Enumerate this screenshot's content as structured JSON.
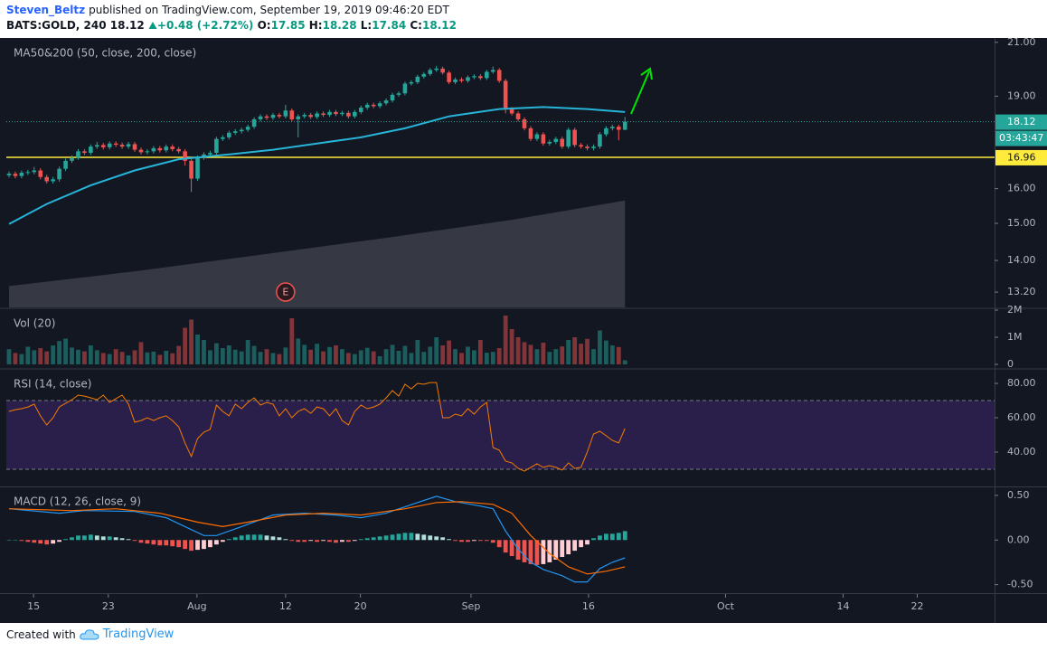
{
  "header": {
    "author": "Steven_Beltz",
    "published": "published on TradingView.com, September 19, 2019 09:46:20 EDT",
    "symbol": "BATS:GOLD, 240",
    "change": "+0.48 (+2.72%)",
    "ohlc_labels": [
      "O:",
      "H:",
      "L:",
      "C:"
    ]
  },
  "footer": {
    "created": "Created with",
    "brand": "TradingView"
  },
  "chart_data": [
    {
      "type": "candlestick",
      "title": "MA50&200 (50, close, 200, close)",
      "log_scale": true,
      "up_color": "#26a69a",
      "down_color": "#ef5350",
      "xlim": [
        -0.43,
        156.8
      ],
      "ylim": [
        12.83,
        21.1
      ],
      "xticks": [
        {
          "value": 3.9,
          "label": "15"
        },
        {
          "value": 15.8,
          "label": "23"
        },
        {
          "value": 29.9,
          "label": "Aug"
        },
        {
          "value": 44.0,
          "label": "12"
        },
        {
          "value": 55.9,
          "label": "20"
        },
        {
          "value": 73.5,
          "label": "Sep"
        },
        {
          "value": 92.2,
          "label": "16"
        },
        {
          "value": 114,
          "label": "Oct"
        },
        {
          "value": 132.7,
          "label": "14"
        },
        {
          "value": 144.5,
          "label": "22"
        }
      ],
      "yticks": [
        {
          "value": 21,
          "label": "21.00"
        },
        {
          "value": 19,
          "label": "19.00"
        },
        {
          "value": 16,
          "label": "16.00"
        },
        {
          "value": 15,
          "label": "15.00"
        },
        {
          "value": 14,
          "label": "14.00"
        },
        {
          "value": 13.2,
          "label": "13.20"
        }
      ],
      "ohlc": [
        [
          16.4,
          16.52,
          16.33,
          16.45
        ],
        [
          16.45,
          16.52,
          16.31,
          16.38
        ],
        [
          16.38,
          16.55,
          16.31,
          16.48
        ],
        [
          16.48,
          16.57,
          16.41,
          16.5
        ],
        [
          16.5,
          16.66,
          16.43,
          16.55
        ],
        [
          16.55,
          16.62,
          16.28,
          16.35
        ],
        [
          16.35,
          16.42,
          16.15,
          16.22
        ],
        [
          16.22,
          16.35,
          16.15,
          16.28
        ],
        [
          16.28,
          16.67,
          16.21,
          16.6
        ],
        [
          16.6,
          16.92,
          16.53,
          16.85
        ],
        [
          16.85,
          17.02,
          16.78,
          16.95
        ],
        [
          16.95,
          17.22,
          16.88,
          17.15
        ],
        [
          17.15,
          17.22,
          17.03,
          17.1
        ],
        [
          17.1,
          17.37,
          17.03,
          17.3
        ],
        [
          17.3,
          17.45,
          17.23,
          17.35
        ],
        [
          17.35,
          17.42,
          17.21,
          17.28
        ],
        [
          17.28,
          17.47,
          17.21,
          17.4
        ],
        [
          17.4,
          17.47,
          17.29,
          17.36
        ],
        [
          17.36,
          17.43,
          17.23,
          17.3
        ],
        [
          17.3,
          17.45,
          17.23,
          17.38
        ],
        [
          17.38,
          17.45,
          17.13,
          17.2
        ],
        [
          17.2,
          17.27,
          17.05,
          17.12
        ],
        [
          17.12,
          17.22,
          17.05,
          17.15
        ],
        [
          17.15,
          17.32,
          17.08,
          17.25
        ],
        [
          17.25,
          17.32,
          17.11,
          17.18
        ],
        [
          17.18,
          17.37,
          17.11,
          17.3
        ],
        [
          17.3,
          17.37,
          17.15,
          17.22
        ],
        [
          17.22,
          17.29,
          17.08,
          17.15
        ],
        [
          17.15,
          17.22,
          16.7,
          16.85
        ],
        [
          16.85,
          16.92,
          15.9,
          16.3
        ],
        [
          16.3,
          17.02,
          16.23,
          16.95
        ],
        [
          16.95,
          17.12,
          16.88,
          17.05
        ],
        [
          17.05,
          17.17,
          16.98,
          17.1
        ],
        [
          17.1,
          17.62,
          17.03,
          17.55
        ],
        [
          17.55,
          17.67,
          17.48,
          17.6
        ],
        [
          17.6,
          17.82,
          17.53,
          17.75
        ],
        [
          17.75,
          17.87,
          17.68,
          17.8
        ],
        [
          17.8,
          17.92,
          17.73,
          17.85
        ],
        [
          17.85,
          18.02,
          17.78,
          17.95
        ],
        [
          17.95,
          18.27,
          17.88,
          18.2
        ],
        [
          18.2,
          18.37,
          18.13,
          18.3
        ],
        [
          18.3,
          18.37,
          18.18,
          18.25
        ],
        [
          18.25,
          18.42,
          18.18,
          18.35
        ],
        [
          18.35,
          18.42,
          18.23,
          18.3
        ],
        [
          18.3,
          18.7,
          18.23,
          18.5
        ],
        [
          18.5,
          18.57,
          18.13,
          18.2
        ],
        [
          18.2,
          18.37,
          17.6,
          18.3
        ],
        [
          18.3,
          18.42,
          18.23,
          18.35
        ],
        [
          18.35,
          18.42,
          18.21,
          18.28
        ],
        [
          18.28,
          18.47,
          18.21,
          18.4
        ],
        [
          18.4,
          18.47,
          18.28,
          18.35
        ],
        [
          18.35,
          18.52,
          18.28,
          18.45
        ],
        [
          18.45,
          18.52,
          18.31,
          18.38
        ],
        [
          18.38,
          18.49,
          18.31,
          18.42
        ],
        [
          18.42,
          18.49,
          18.23,
          18.3
        ],
        [
          18.3,
          18.52,
          18.23,
          18.45
        ],
        [
          18.45,
          18.67,
          18.38,
          18.6
        ],
        [
          18.6,
          18.77,
          18.53,
          18.7
        ],
        [
          18.7,
          18.77,
          18.58,
          18.65
        ],
        [
          18.65,
          18.82,
          18.58,
          18.75
        ],
        [
          18.75,
          18.92,
          18.68,
          18.85
        ],
        [
          18.85,
          19.12,
          18.78,
          19.05
        ],
        [
          19.05,
          19.17,
          18.98,
          19.1
        ],
        [
          19.1,
          19.52,
          19.03,
          19.45
        ],
        [
          19.45,
          19.57,
          19.38,
          19.5
        ],
        [
          19.5,
          19.77,
          19.43,
          19.7
        ],
        [
          19.7,
          19.87,
          19.63,
          19.8
        ],
        [
          19.8,
          20.02,
          19.73,
          19.95
        ],
        [
          19.95,
          20.1,
          19.88,
          20.0
        ],
        [
          20.0,
          20.07,
          19.78,
          19.85
        ],
        [
          19.85,
          19.92,
          19.43,
          19.5
        ],
        [
          19.5,
          19.67,
          19.43,
          19.6
        ],
        [
          19.6,
          19.67,
          19.48,
          19.55
        ],
        [
          19.55,
          19.75,
          19.48,
          19.68
        ],
        [
          19.68,
          19.79,
          19.61,
          19.72
        ],
        [
          19.72,
          19.79,
          19.58,
          19.65
        ],
        [
          19.65,
          19.95,
          19.58,
          19.88
        ],
        [
          19.88,
          20.08,
          19.81,
          19.95
        ],
        [
          19.95,
          20.02,
          19.48,
          19.55
        ],
        [
          19.55,
          19.62,
          18.4,
          18.55
        ],
        [
          18.55,
          18.62,
          18.33,
          18.4
        ],
        [
          18.4,
          18.47,
          18.13,
          18.2
        ],
        [
          18.2,
          18.27,
          17.83,
          17.9
        ],
        [
          17.9,
          17.97,
          17.48,
          17.55
        ],
        [
          17.55,
          17.77,
          17.48,
          17.7
        ],
        [
          17.7,
          17.77,
          17.33,
          17.4
        ],
        [
          17.4,
          17.52,
          17.33,
          17.45
        ],
        [
          17.45,
          17.62,
          17.38,
          17.55
        ],
        [
          17.55,
          17.62,
          17.23,
          17.3
        ],
        [
          17.3,
          17.92,
          17.23,
          17.85
        ],
        [
          17.85,
          17.92,
          17.28,
          17.35
        ],
        [
          17.35,
          17.42,
          17.23,
          17.3
        ],
        [
          17.3,
          17.37,
          17.18,
          17.25
        ],
        [
          17.25,
          17.37,
          17.18,
          17.3
        ],
        [
          17.3,
          17.77,
          17.23,
          17.7
        ],
        [
          17.7,
          17.97,
          17.63,
          17.9
        ],
        [
          17.9,
          18.02,
          17.83,
          17.95
        ],
        [
          17.95,
          18.02,
          17.5,
          17.85
        ],
        [
          17.85,
          18.28,
          17.84,
          18.12
        ]
      ],
      "ma50": {
        "color": "#26b4d8",
        "x": [
          0,
          6,
          13,
          20,
          27,
          35,
          42,
          49,
          56,
          63,
          70,
          78,
          85,
          92,
          98
        ],
        "values": [
          14.98,
          15.55,
          16.1,
          16.55,
          16.9,
          17.05,
          17.2,
          17.4,
          17.6,
          17.9,
          18.3,
          18.55,
          18.62,
          18.55,
          18.45
        ]
      },
      "ma200": {
        "color": "#3d4049",
        "x": [
          0,
          20,
          40,
          60,
          80,
          98
        ],
        "values": [
          13.35,
          13.72,
          14.15,
          14.6,
          15.1,
          15.65
        ]
      },
      "hline": {
        "value": 16.96,
        "color": "#ffeb3b"
      },
      "countdown": "03:43:47",
      "events": [
        {
          "x": 44,
          "label": "E"
        }
      ]
    },
    {
      "type": "bar",
      "title": "Vol (20)",
      "opacity": 0.5,
      "ylim": [
        0,
        2000000
      ],
      "yticks": [
        {
          "value": 2000000,
          "label": "2M"
        },
        {
          "value": 1000000,
          "label": "1M"
        },
        0
      ],
      "values": [
        560000,
        420000,
        380000,
        650000,
        520000,
        600000,
        480000,
        700000,
        860000,
        950000,
        620000,
        540000,
        480000,
        700000,
        520000,
        420000,
        380000,
        560000,
        460000,
        330000,
        520000,
        820000,
        440000,
        470000,
        350000,
        500000,
        410000,
        680000,
        1350000,
        1650000,
        1100000,
        900000,
        520000,
        780000,
        600000,
        700000,
        540000,
        480000,
        900000,
        680000,
        460000,
        560000,
        420000,
        380000,
        620000,
        1700000,
        950000,
        720000,
        540000,
        760000,
        480000,
        640000,
        700000,
        560000,
        420000,
        380000,
        520000,
        610000,
        480000,
        300000,
        560000,
        720000,
        500000,
        680000,
        420000,
        900000,
        460000,
        650000,
        1000000,
        700000,
        880000,
        560000,
        420000,
        650000,
        520000,
        900000,
        430000,
        460000,
        600000,
        1800000,
        1300000,
        1000000,
        820000,
        720000,
        560000,
        800000,
        460000,
        560000,
        660000,
        900000,
        1000000,
        760000,
        940000,
        560000,
        1250000,
        880000,
        700000,
        640000,
        150000
      ]
    },
    {
      "type": "line",
      "title": "RSI (14, close)",
      "color": "#f57c00",
      "band": [
        30,
        70
      ],
      "band_color": "#2a1f4a",
      "ylim": [
        20.5,
        87.4
      ],
      "yticks": [
        {
          "value": 80,
          "label": "80.00"
        },
        {
          "value": 60,
          "label": "60.00"
        },
        {
          "value": 40,
          "label": "40.00"
        }
      ],
      "values": [
        63.7,
        64.7,
        65.3,
        66.3,
        67.9,
        61.1,
        55.8,
        60,
        66.3,
        68.4,
        70.5,
        73.2,
        72.6,
        71.6,
        70.5,
        73.2,
        68.9,
        71.1,
        73.2,
        67.9,
        57.4,
        58.4,
        60,
        58.4,
        60,
        61.1,
        58.4,
        54.7,
        45.3,
        37.4,
        47.9,
        51.6,
        53.2,
        67.4,
        63.7,
        61.1,
        67.9,
        65.3,
        68.9,
        71.6,
        67.4,
        68.9,
        67.9,
        61.1,
        65.3,
        60,
        63.7,
        65.3,
        62.6,
        66.3,
        65.3,
        61.1,
        65.3,
        58.4,
        55.8,
        63.7,
        67.4,
        65.3,
        66.3,
        67.9,
        71.6,
        75.8,
        72.6,
        79.5,
        76.8,
        80,
        79.5,
        80.5,
        80.5,
        60,
        60,
        62.1,
        61.1,
        65.3,
        62.1,
        66.3,
        68.9,
        42.6,
        41.1,
        34.7,
        33.7,
        30.5,
        28.9,
        31.1,
        33.2,
        31.1,
        32.1,
        31.1,
        29.5,
        33.7,
        30.5,
        31.1,
        40,
        50.5,
        52.1,
        49.5,
        46.8,
        45.3,
        53.7
      ]
    },
    {
      "type": "macd",
      "title": "MACD (12, 26, close, 9)",
      "hist_colors": [
        "#26a69a",
        "#b2dfdb",
        "#ef5350",
        "#ffcdd2"
      ],
      "ylim": [
        -0.585,
        0.58
      ],
      "yticks": [
        {
          "value": 0.5,
          "label": "0.50"
        },
        {
          "value": 0,
          "label": "0.00"
        },
        {
          "value": -0.5,
          "label": "-0.50"
        }
      ],
      "histogram": [
        0.0,
        0.0,
        -0.01,
        -0.02,
        -0.03,
        -0.04,
        -0.05,
        -0.04,
        -0.02,
        0.01,
        0.03,
        0.05,
        0.05,
        0.06,
        0.05,
        0.04,
        0.04,
        0.03,
        0.02,
        0.01,
        -0.01,
        -0.03,
        -0.04,
        -0.05,
        -0.06,
        -0.06,
        -0.07,
        -0.08,
        -0.1,
        -0.12,
        -0.11,
        -0.1,
        -0.08,
        -0.05,
        -0.02,
        0.01,
        0.03,
        0.05,
        0.06,
        0.06,
        0.06,
        0.05,
        0.04,
        0.03,
        0.01,
        -0.01,
        -0.02,
        -0.02,
        -0.01,
        -0.02,
        -0.01,
        -0.02,
        -0.03,
        -0.02,
        -0.02,
        -0.01,
        0.01,
        0.02,
        0.03,
        0.04,
        0.05,
        0.06,
        0.07,
        0.08,
        0.08,
        0.07,
        0.06,
        0.05,
        0.04,
        0.03,
        0.01,
        -0.01,
        -0.02,
        -0.02,
        -0.01,
        -0.01,
        -0.01,
        -0.03,
        -0.08,
        -0.14,
        -0.18,
        -0.22,
        -0.25,
        -0.27,
        -0.28,
        -0.27,
        -0.25,
        -0.22,
        -0.19,
        -0.16,
        -0.12,
        -0.08,
        -0.05,
        0.02,
        0.05,
        0.07,
        0.07,
        0.08,
        0.1
      ],
      "series": [
        {
          "color": "#2196f3",
          "x": [
            0,
            8,
            12,
            20,
            25,
            28,
            31,
            33,
            37,
            42,
            47,
            52,
            56,
            60,
            65,
            68,
            71,
            75,
            77,
            79,
            81,
            83,
            85,
            88,
            90,
            92,
            94,
            96,
            98
          ],
          "values": [
            0.35,
            0.3,
            0.33,
            0.32,
            0.25,
            0.15,
            0.05,
            0.05,
            0.15,
            0.28,
            0.3,
            0.28,
            0.25,
            0.3,
            0.42,
            0.49,
            0.43,
            0.38,
            0.35,
            0.1,
            -0.1,
            -0.25,
            -0.33,
            -0.4,
            -0.47,
            -0.47,
            -0.32,
            -0.25,
            -0.2
          ]
        },
        {
          "color": "#ff6d00",
          "x": [
            0,
            10,
            17,
            24,
            30,
            34,
            38,
            44,
            50,
            56,
            63,
            68,
            72,
            77,
            80,
            83,
            86,
            89,
            92,
            95,
            98
          ],
          "values": [
            0.35,
            0.33,
            0.35,
            0.3,
            0.2,
            0.15,
            0.2,
            0.28,
            0.3,
            0.28,
            0.35,
            0.42,
            0.43,
            0.4,
            0.3,
            0.05,
            -0.15,
            -0.3,
            -0.38,
            -0.35,
            -0.3
          ]
        }
      ]
    }
  ]
}
